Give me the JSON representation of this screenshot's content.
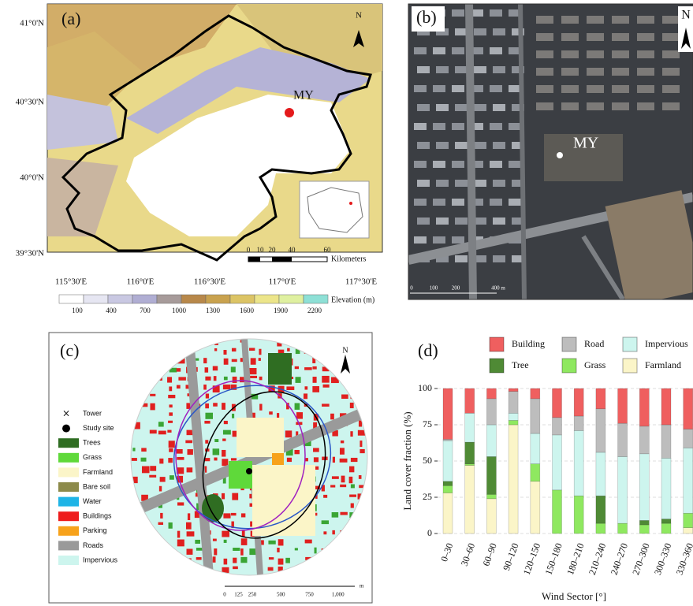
{
  "panel_a": {
    "label": "(a)",
    "north": "N",
    "site": "MY",
    "lat_labels": [
      "41°0'N",
      "40°30'N",
      "40°0'N",
      "39°30'N"
    ],
    "lon_labels": [
      "115°30'E",
      "116°0'E",
      "116°30'E",
      "117°0'E",
      "117°30'E"
    ],
    "scale_labels": [
      "0",
      "10",
      "20",
      "40",
      "60"
    ],
    "scale_unit": "Kilometers",
    "elevation_title": "Elevation (m)",
    "elevation_labels": [
      "100",
      "400",
      "700",
      "1000",
      "1300",
      "1600",
      "1900",
      "2200"
    ]
  },
  "panel_b": {
    "label": "(b)",
    "north": "N",
    "site": "MY",
    "scale_labels": [
      "0",
      "100",
      "200",
      "400 m"
    ]
  },
  "panel_c": {
    "label": "(c)",
    "north": "N",
    "legend": [
      "Tower",
      "Study site",
      "Trees",
      "Grass",
      "Farmland",
      "Bare soil",
      "Water",
      "Buildings",
      "Parking",
      "Roads",
      "Impervious"
    ],
    "scale_labels": [
      "0",
      "125",
      "250",
      "500",
      "750",
      "1,000"
    ],
    "scale_unit": "m"
  },
  "chart_data": {
    "type": "stacked-bar",
    "panel_label": "(d)",
    "x_label": "Wind Sector [°]",
    "y_label": "Land cover fraction (%)",
    "categories": [
      "0–30",
      "30–60",
      "60–90",
      "90–120",
      "120–150",
      "150–180",
      "180–210",
      "210–240",
      "240–270",
      "270–300",
      "300–330",
      "330–360"
    ],
    "ylim": [
      0,
      100
    ],
    "yticks": [
      0,
      25,
      50,
      75,
      100
    ],
    "grid": true,
    "series": [
      {
        "name": "Building",
        "color": "#ef5f5f",
        "values": [
          35,
          17,
          7,
          2,
          7,
          20,
          19,
          14,
          24,
          26,
          25,
          28
        ]
      },
      {
        "name": "Road",
        "color": "#bdbdbd",
        "values": [
          1,
          0,
          18,
          15,
          24,
          12,
          10,
          30,
          23,
          19,
          23,
          13
        ]
      },
      {
        "name": "Impervious",
        "color": "#cdf5ee",
        "values": [
          28,
          20,
          22,
          5,
          21,
          38,
          45,
          30,
          46,
          46,
          42,
          45
        ]
      },
      {
        "name": "Tree",
        "color": "#4f8a35",
        "values": [
          3,
          15,
          26,
          0,
          0,
          0,
          0,
          19,
          0,
          3,
          3,
          0
        ]
      },
      {
        "name": "Grass",
        "color": "#8fe860",
        "values": [
          5,
          1,
          3,
          3,
          12,
          30,
          26,
          7,
          7,
          6,
          7,
          10
        ]
      },
      {
        "name": "Farmland",
        "color": "#fbf5c8",
        "values": [
          28,
          47,
          24,
          75,
          36,
          0,
          0,
          0,
          0,
          0,
          0,
          4
        ]
      }
    ]
  }
}
